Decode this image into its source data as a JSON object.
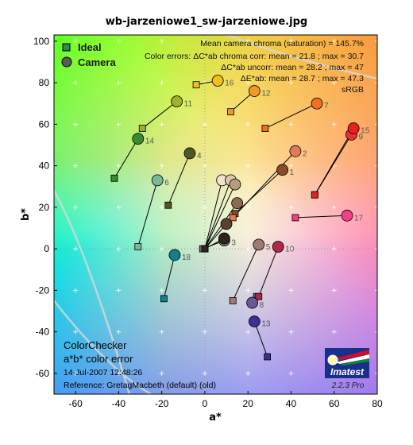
{
  "chart_data": {
    "type": "scatter",
    "title": "wb-jarzeniowe1_sw-jarzeniowe.jpg",
    "xlabel": "a*",
    "ylabel": "b*",
    "xlim": [
      -70,
      80
    ],
    "ylim": [
      -70,
      103
    ],
    "xticks": [
      -60,
      -40,
      -20,
      0,
      20,
      40,
      60,
      80
    ],
    "yticks": [
      -60,
      -40,
      -20,
      0,
      20,
      40,
      60,
      80,
      100
    ],
    "grid": true,
    "legend_position": "top-left",
    "series": [
      {
        "name": "Ideal",
        "marker": "square"
      },
      {
        "name": "Camera",
        "marker": "circle"
      }
    ],
    "points": [
      {
        "label": "1",
        "ideal": [
          14,
          17
        ],
        "camera": [
          36,
          38
        ],
        "color": "#8b4a2a"
      },
      {
        "label": "2",
        "ideal": [
          13,
          15
        ],
        "camera": [
          42,
          47
        ],
        "color": "#e07a5a"
      },
      {
        "label": "3",
        "ideal": [
          -1,
          0
        ],
        "camera": [
          9,
          4
        ],
        "color": "#7a7070"
      },
      {
        "label": "4",
        "ideal": [
          -17,
          21
        ],
        "camera": [
          -7,
          46
        ],
        "color": "#4e5a25"
      },
      {
        "label": "5",
        "ideal": [
          13,
          -25
        ],
        "camera": [
          25,
          2
        ],
        "color": "#a07878"
      },
      {
        "label": "6",
        "ideal": [
          -31,
          1
        ],
        "camera": [
          -22,
          33
        ],
        "color": "#7ab898"
      },
      {
        "label": "7",
        "ideal": [
          28,
          58
        ],
        "camera": [
          52,
          70
        ],
        "color": "#f07020"
      },
      {
        "label": "8",
        "ideal": [
          24,
          -23
        ],
        "camera": [
          22,
          -26
        ],
        "color": "#6a5890"
      },
      {
        "label": "9",
        "ideal": [
          51,
          26
        ],
        "camera": [
          68,
          55
        ],
        "color": "#e83030"
      },
      {
        "label": "10",
        "ideal": [
          25,
          -23
        ],
        "camera": [
          34,
          1
        ],
        "color": "#b02848"
      },
      {
        "label": "11",
        "ideal": [
          -29,
          58
        ],
        "camera": [
          -13,
          71
        ],
        "color": "#a0b028"
      },
      {
        "label": "12",
        "ideal": [
          12,
          66
        ],
        "camera": [
          23,
          76
        ],
        "color": "#f09828"
      },
      {
        "label": "13",
        "ideal": [
          29,
          -52
        ],
        "camera": [
          23,
          -35
        ],
        "color": "#3a3090"
      },
      {
        "label": "14",
        "ideal": [
          -42,
          34
        ],
        "camera": [
          -31,
          53
        ],
        "color": "#3a8a30"
      },
      {
        "label": "15",
        "ideal": [
          51,
          26
        ],
        "camera": [
          69,
          58
        ],
        "color": "#e82020"
      },
      {
        "label": "16",
        "ideal": [
          -4,
          79
        ],
        "camera": [
          6,
          81
        ],
        "color": "#f0c020"
      },
      {
        "label": "17",
        "ideal": [
          42,
          15
        ],
        "camera": [
          66,
          16
        ],
        "color": "#f04088"
      },
      {
        "label": "18",
        "ideal": [
          -19,
          -24
        ],
        "camera": [
          -14,
          -3
        ],
        "color": "#10808f"
      },
      {
        "label": "",
        "ideal": [
          0,
          0
        ],
        "camera": [
          8,
          33
        ],
        "color": "#f2e2cc"
      },
      {
        "label": "",
        "ideal": [
          0,
          0
        ],
        "camera": [
          12,
          33
        ],
        "color": "#dcc6ac"
      },
      {
        "label": "",
        "ideal": [
          0,
          0
        ],
        "camera": [
          14,
          31
        ],
        "color": "#b89c80"
      },
      {
        "label": "",
        "ideal": [
          0,
          0
        ],
        "camera": [
          15,
          22
        ],
        "color": "#8a6a50"
      },
      {
        "label": "",
        "ideal": [
          0,
          0
        ],
        "camera": [
          10,
          12
        ],
        "color": "#5a4030"
      },
      {
        "label": "",
        "ideal": [
          0,
          0
        ],
        "camera": [
          9,
          5
        ],
        "color": "#2e2420"
      }
    ]
  },
  "legend": {
    "ideal": "Ideal",
    "camera": "Camera",
    "ideal_color": "#2e8b57",
    "camera_color": "#5a5a5a"
  },
  "stats": {
    "line1": "Mean camera chroma (saturation) = 145.7%",
    "line2": "Color errors:  ΔC*ab chroma corr:  mean = 21.8 ;  max = 30.7",
    "line3": "ΔC*ab uncorr:  mean = 28.2 ;  max = 47",
    "line4": "ΔE*ab:  mean = 28.7 ;  max = 47.3",
    "line5": "sRGB"
  },
  "caption": {
    "line1": "ColorChecker",
    "line2": "a*b* color error",
    "line3": "14-Jul-2007 12:48:26",
    "line4": "Reference: GretagMacbeth (default) (old)"
  },
  "logo": {
    "word": "Imatest",
    "version": "2.2.3  Pro",
    "color_blue": "#1a2f8a",
    "color_red": "#c8102e",
    "color_green": "#10873a"
  }
}
